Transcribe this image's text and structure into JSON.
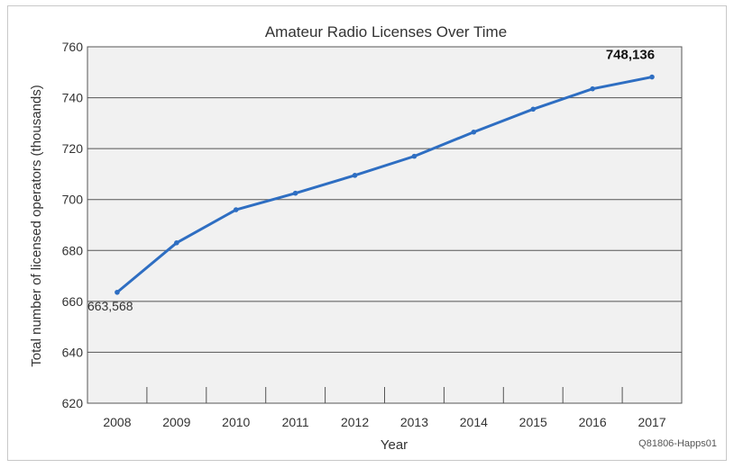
{
  "chart_data": {
    "type": "line",
    "title": "Amateur Radio Licenses Over Time",
    "xlabel": "Year",
    "ylabel": "Total number of licensed operators (thousands)",
    "categories": [
      "2008",
      "2009",
      "2010",
      "2011",
      "2012",
      "2013",
      "2014",
      "2015",
      "2016",
      "2017"
    ],
    "series": [
      {
        "values": [
          663.568,
          683,
          696,
          702.5,
          709.5,
          717,
          726.5,
          735.5,
          743.5,
          748.136
        ]
      }
    ],
    "ylim": [
      620,
      760
    ],
    "yticks": [
      "620",
      "640",
      "660",
      "680",
      "700",
      "720",
      "740",
      "760"
    ],
    "grid": true,
    "annotations": {
      "start_value": "663,568",
      "end_value": "748,136"
    },
    "source_note": "Q81806-Happs01",
    "colors": {
      "line": "#2e6ec2",
      "grid": "#555555",
      "plot_bg": "#f1f1f1",
      "frame": "#c8c8c8"
    }
  }
}
